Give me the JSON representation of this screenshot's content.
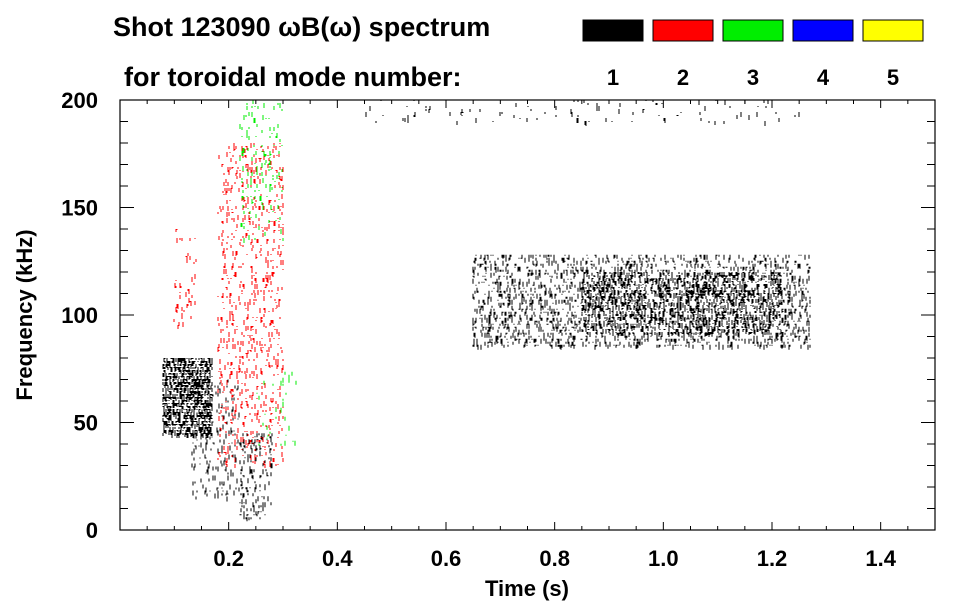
{
  "chart_data": {
    "type": "spectrogram",
    "title_line1": "Shot 123090 ωB(ω) spectrum",
    "title_line2": "for toroidal mode number:",
    "xlabel": "Time (s)",
    "ylabel": "Frequency (kHz)",
    "xlim": [
      0.0,
      1.5
    ],
    "ylim": [
      0,
      200
    ],
    "x_ticks": [
      0.2,
      0.4,
      0.6,
      0.8,
      1.0,
      1.2,
      1.4
    ],
    "x_tick_labels": [
      "0.2",
      "0.4",
      "0.6",
      "0.8",
      "1.0",
      "1.2",
      "1.4"
    ],
    "y_ticks": [
      0,
      50,
      100,
      150,
      200
    ],
    "y_tick_labels": [
      "0",
      "50",
      "100",
      "150",
      "200"
    ],
    "legend": [
      {
        "mode": "1",
        "color": "#000000"
      },
      {
        "mode": "2",
        "color": "#ff0000"
      },
      {
        "mode": "3",
        "color": "#00ee00"
      },
      {
        "mode": "4",
        "color": "#0000ff"
      },
      {
        "mode": "5",
        "color": "#ffff00"
      }
    ],
    "features": [
      {
        "mode": "1",
        "t_range": [
          0.08,
          0.17
        ],
        "f_range": [
          45,
          80
        ],
        "density": 0.55
      },
      {
        "mode": "1",
        "t_range": [
          0.13,
          0.22
        ],
        "f_range": [
          15,
          70
        ],
        "density": 0.1
      },
      {
        "mode": "1",
        "t_range": [
          0.22,
          0.28
        ],
        "f_range": [
          5,
          45
        ],
        "density": 0.14
      },
      {
        "mode": "1",
        "t_range": [
          0.45,
          1.25
        ],
        "f_range": [
          190,
          200
        ],
        "density": 0.03
      },
      {
        "mode": "1",
        "t_range": [
          0.65,
          1.27
        ],
        "f_range": [
          85,
          128
        ],
        "density": 0.2
      },
      {
        "mode": "1",
        "t_range": [
          0.85,
          1.22
        ],
        "f_range": [
          92,
          120
        ],
        "density": 0.25
      },
      {
        "mode": "2",
        "t_range": [
          0.18,
          0.3
        ],
        "f_range": [
          30,
          180
        ],
        "density": 0.1
      },
      {
        "mode": "2",
        "t_range": [
          0.1,
          0.14
        ],
        "f_range": [
          95,
          140
        ],
        "density": 0.05
      },
      {
        "mode": "3",
        "t_range": [
          0.22,
          0.3
        ],
        "f_range": [
          135,
          200
        ],
        "density": 0.07
      },
      {
        "mode": "3",
        "t_range": [
          0.25,
          0.33
        ],
        "f_range": [
          40,
          75
        ],
        "density": 0.03
      }
    ]
  }
}
